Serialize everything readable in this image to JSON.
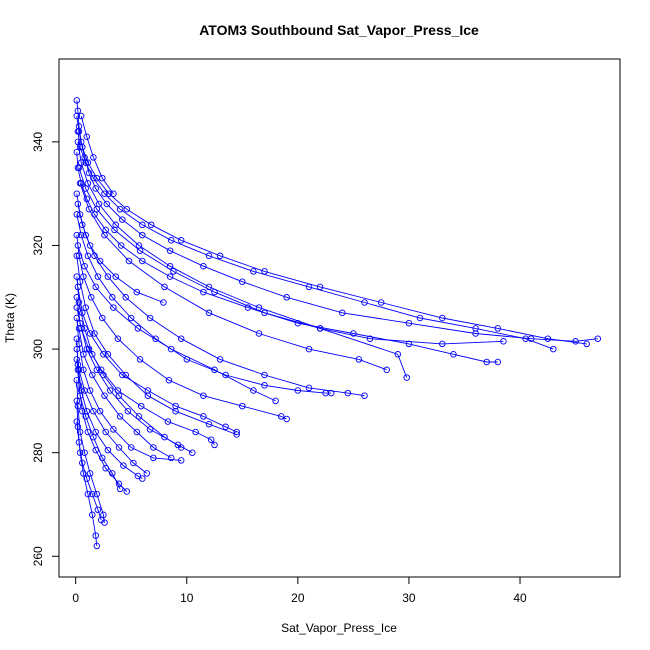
{
  "chart_data": {
    "type": "scatter",
    "title": "ATOM3 Southbound Sat_Vapor_Press_Ice",
    "xlabel": "Sat_Vapor_Press_Ice",
    "ylabel": "Theta (K)",
    "xlim": [
      -1.5,
      49
    ],
    "ylim": [
      256,
      356
    ],
    "xticks": [
      0,
      10,
      20,
      30,
      40
    ],
    "yticks": [
      260,
      280,
      300,
      320,
      340
    ],
    "tick_labels_x": [
      "0",
      "10",
      "20",
      "30",
      "40"
    ],
    "tick_labels_y": [
      "260",
      "280",
      "300",
      "320",
      "340"
    ],
    "color": "#0000ff",
    "marker": "open-circle",
    "lines_connecting_points": true,
    "grid": false,
    "legend": "none",
    "series": [
      {
        "x": [
          0.1,
          0.2,
          0.3,
          0.5,
          0.8,
          1.2,
          1.8,
          2.8,
          4.2,
          6.0,
          8.5,
          11.5,
          15.0,
          19.0,
          24.0,
          30.0,
          36.0,
          41.0,
          45.0,
          47.0
        ],
        "y": [
          348,
          346,
          343,
          340,
          337,
          334,
          331,
          328,
          325,
          322,
          319,
          316,
          313,
          310,
          307,
          305,
          303,
          302,
          301.5,
          302
        ]
      },
      {
        "x": [
          0.1,
          0.3,
          0.6,
          1.1,
          1.9,
          3.0,
          4.6,
          6.8,
          9.5,
          13.0,
          17.0,
          22.0,
          27.5,
          33.0,
          38.0,
          42.5,
          46.0
        ],
        "y": [
          345,
          342,
          339,
          336,
          333,
          330,
          327,
          324,
          321,
          318,
          315,
          312,
          309,
          306,
          304,
          302,
          301
        ]
      },
      {
        "x": [
          0.2,
          0.4,
          0.9,
          1.6,
          2.6,
          4.0,
          6.0,
          8.6,
          12.0,
          16.0,
          21.0,
          26.0,
          31.0,
          36.0,
          40.5,
          43.0
        ],
        "y": [
          342,
          339,
          336,
          333,
          330,
          327,
          324,
          321,
          318,
          315,
          312,
          309,
          306,
          304,
          302,
          300
        ]
      },
      {
        "x": [
          0.1,
          0.2,
          0.5,
          1.0,
          1.7,
          2.7,
          4.1,
          6.0,
          8.5,
          11.5,
          15.5,
          20.0,
          25.0,
          30.0,
          34.0,
          37.0,
          38.0
        ],
        "y": [
          338,
          335,
          332,
          329,
          326,
          323,
          320,
          317,
          314,
          311,
          308,
          305,
          303,
          301,
          299,
          297.5,
          297.5
        ]
      },
      {
        "x": [
          0.1,
          0.4,
          0.9,
          1.7,
          2.9,
          4.5,
          6.7,
          9.5,
          13.0,
          17.0,
          21.0,
          24.5,
          26.0
        ],
        "y": [
          330,
          326,
          322,
          318,
          314,
          310,
          306,
          302,
          298,
          295,
          292.5,
          291.5,
          291
        ]
      },
      {
        "x": [
          0.1,
          0.5,
          1.1,
          2.0,
          3.3,
          5.0,
          7.2,
          10.0,
          13.5,
          17.0,
          20.0,
          22.5,
          23.0
        ],
        "y": [
          326,
          322,
          318,
          314,
          310,
          306,
          302,
          298,
          295,
          293,
          292,
          291.5,
          291.5
        ]
      },
      {
        "x": [
          0.1,
          0.3,
          0.7,
          1.4,
          2.4,
          3.8,
          5.8,
          8.4,
          11.5,
          15.0,
          18.5,
          19.0
        ],
        "y": [
          322,
          318,
          314,
          310,
          306,
          302,
          298,
          294,
          291,
          289,
          287,
          286.5
        ]
      },
      {
        "x": [
          0.1,
          0.4,
          0.9,
          1.7,
          2.9,
          4.5,
          6.5,
          9.0,
          12.0,
          14.5
        ],
        "y": [
          318,
          313,
          308,
          303,
          299,
          295,
          291,
          288,
          285.5,
          283.5
        ]
      },
      {
        "x": [
          0.1,
          0.3,
          0.8,
          1.5,
          2.5,
          3.9,
          5.7,
          8.0,
          9.5
        ],
        "y": [
          314,
          309,
          304,
          299,
          295,
          291,
          287,
          283,
          281
        ]
      },
      {
        "x": [
          0.1,
          0.4,
          1.0,
          1.9,
          3.1,
          4.7,
          6.7,
          9.2,
          10.5
        ],
        "y": [
          310,
          305,
          300,
          296,
          292,
          288,
          284.5,
          281.5,
          280
        ]
      },
      {
        "x": [
          0.1,
          0.3,
          0.7,
          1.3,
          2.2,
          3.4,
          5.0,
          7.0,
          9.5
        ],
        "y": [
          306,
          301,
          296,
          292,
          288,
          284.5,
          281,
          279,
          278.5
        ]
      },
      {
        "x": [
          0.1,
          0.2,
          0.5,
          1.0,
          1.8,
          2.9,
          4.3,
          5.6,
          6.0
        ],
        "y": [
          302,
          297,
          292,
          288,
          284,
          280.5,
          277.5,
          275.5,
          275
        ]
      },
      {
        "x": [
          0.1,
          0.3,
          0.6,
          1.1,
          1.8,
          2.7,
          3.9,
          4.6
        ],
        "y": [
          298,
          293,
          288,
          284,
          280.5,
          277,
          274,
          272.5
        ]
      },
      {
        "x": [
          0.1,
          0.2,
          0.4,
          0.8,
          1.3,
          1.9,
          2.5,
          2.6
        ],
        "y": [
          294,
          289,
          284,
          280,
          276,
          272,
          268,
          266.5
        ]
      },
      {
        "x": [
          0.1,
          0.2,
          0.4,
          0.7,
          1.1,
          1.5,
          1.8,
          1.9
        ],
        "y": [
          290,
          285,
          280,
          276,
          272,
          268,
          264,
          262
        ]
      },
      {
        "x": [
          0.2,
          0.5,
          1.1,
          2.1,
          3.6,
          5.7,
          8.5,
          12.0,
          16.5,
          22.0,
          29.0,
          29.8
        ],
        "y": [
          340,
          336,
          332,
          328,
          324,
          320,
          316,
          312,
          308,
          304,
          299,
          294.5
        ]
      },
      {
        "x": [
          0.3,
          0.9,
          1.9,
          3.5,
          5.8,
          8.8,
          12.5,
          17.0,
          22.0,
          26.5,
          33.0,
          38.5
        ],
        "y": [
          335,
          331,
          327,
          323,
          319,
          315,
          311,
          307,
          304,
          302,
          301,
          301.5
        ]
      },
      {
        "x": [
          0.4,
          1.2,
          2.6,
          4.8,
          8.0,
          12.0,
          16.5,
          21.0,
          25.5,
          28.0
        ],
        "y": [
          332,
          327,
          322,
          317,
          312,
          307,
          303,
          300,
          298,
          296
        ]
      },
      {
        "x": [
          0.2,
          0.6,
          1.3,
          2.5,
          4.2,
          6.5,
          9.0,
          11.5,
          13.5,
          14.5
        ],
        "y": [
          312,
          307,
          303,
          299,
          295,
          292,
          289,
          287,
          285,
          284
        ]
      },
      {
        "x": [
          0.1,
          0.5,
          1.2,
          2.3,
          3.8,
          5.9,
          8.3,
          10.8,
          12.2,
          12.5
        ],
        "y": [
          308,
          304,
          300,
          296,
          292,
          289,
          286,
          284,
          282.5,
          281.5
        ]
      },
      {
        "x": [
          0.2,
          0.8,
          1.8,
          3.4,
          5.6,
          8.6,
          12.5,
          16.0,
          18.0
        ],
        "y": [
          320,
          316,
          312,
          308,
          304,
          300,
          296,
          292,
          290
        ]
      },
      {
        "x": [
          0.3,
          0.7,
          1.5,
          2.6,
          4.0,
          5.5,
          7.0,
          8.6
        ],
        "y": [
          304,
          299,
          295,
          291,
          287,
          284,
          281,
          279
        ]
      },
      {
        "x": [
          0.1,
          0.3,
          0.8,
          1.6,
          2.7,
          3.9,
          5.2,
          6.4
        ],
        "y": [
          300,
          296,
          292,
          288,
          284,
          281,
          278,
          276
        ]
      },
      {
        "x": [
          0.2,
          0.4,
          0.9,
          1.6,
          2.4,
          3.3,
          4.0
        ],
        "y": [
          296,
          291,
          287,
          283,
          279,
          276,
          273
        ]
      },
      {
        "x": [
          0.1,
          0.3,
          0.6,
          1.0,
          1.5,
          2.0,
          2.3
        ],
        "y": [
          286,
          282,
          278,
          275,
          272,
          269,
          267
        ]
      },
      {
        "x": [
          0.5,
          1.0,
          1.6,
          2.4,
          3.4
        ],
        "y": [
          345,
          341,
          337,
          333,
          330
        ]
      },
      {
        "x": [
          0.2,
          0.6,
          1.3,
          2.2,
          3.6,
          5.5,
          7.9
        ],
        "y": [
          328,
          324,
          320,
          317,
          314,
          311,
          309
        ]
      }
    ]
  }
}
